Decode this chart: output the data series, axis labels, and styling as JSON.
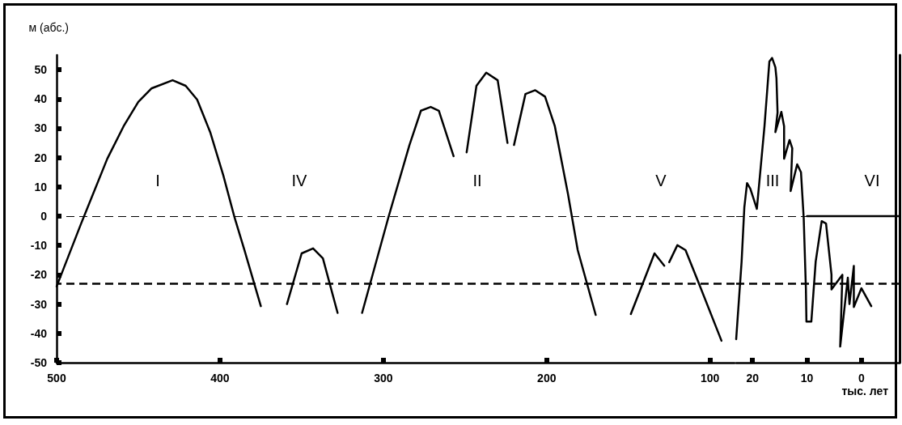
{
  "chart_data": [
    {
      "type": "line",
      "ylabel": "м (абс.)",
      "xlim": [
        500,
        85
      ],
      "xticks": [
        500,
        400,
        300,
        200,
        100
      ],
      "ylim": [
        -50,
        55
      ],
      "yticks": [
        -50,
        -40,
        -30,
        -20,
        -10,
        0,
        10,
        20,
        30,
        40,
        50
      ],
      "marker": "none",
      "line_style": "solid",
      "grid": false,
      "series": [
        {
          "color": "#000000",
          "x": [
            500,
            485,
            469,
            459,
            450,
            442,
            429,
            421,
            414,
            406,
            398,
            391,
            385,
            375
          ],
          "values": [
            -24,
            -2.5,
            19.6,
            30.7,
            39,
            43.6,
            46.4,
            44.5,
            39.8,
            28.7,
            14,
            -0.6,
            -11.6,
            -30.7
          ]
        },
        {
          "color": "#000000",
          "x": [
            359,
            350,
            343,
            337,
            328
          ],
          "values": [
            -30,
            -12.7,
            -11,
            -14.4,
            -33
          ]
        },
        {
          "color": "#000000",
          "x": [
            313,
            297,
            284,
            277,
            271,
            266,
            257
          ],
          "values": [
            -33,
            -0.6,
            24.3,
            36,
            37.3,
            36,
            20.5
          ]
        },
        {
          "color": "#000000",
          "x": [
            249,
            243,
            237,
            230,
            224
          ],
          "values": [
            21.8,
            44.5,
            49,
            46.4,
            25
          ]
        },
        {
          "color": "#000000",
          "x": [
            220,
            213,
            207,
            201,
            195,
            187,
            181,
            170
          ],
          "values": [
            24.3,
            41.7,
            43,
            40.8,
            30.7,
            7.7,
            -11.6,
            -33.7
          ]
        },
        {
          "color": "#000000",
          "x": [
            148.5,
            134,
            128
          ],
          "values": [
            -33.4,
            -12.7,
            -16.9
          ]
        },
        {
          "color": "#000000",
          "x": [
            125,
            120,
            115,
            107,
            93
          ],
          "values": [
            -15.7,
            -9.9,
            -11.6,
            -22.7,
            -42.5
          ]
        }
      ],
      "ref_lines": [
        {
          "axis": "y",
          "value": 0,
          "line_style": "dashed",
          "color": "#000000"
        },
        {
          "axis": "y",
          "value": -23,
          "line_style": "dashed",
          "color": "#000000"
        }
      ],
      "annotations": [
        "I",
        "IV",
        "II",
        "V"
      ]
    },
    {
      "type": "line",
      "xlabel": "тыс. лет",
      "xlim": [
        23,
        -7
      ],
      "xticks": [
        20,
        10,
        0
      ],
      "ylim": [
        -50,
        55
      ],
      "yticks": [
        -50,
        -40,
        -30,
        -20,
        -10,
        0,
        10,
        20,
        30,
        40,
        50
      ],
      "tick_labels": "x",
      "marker": "none",
      "line_style": "solid",
      "grid": false,
      "series": [
        {
          "color": "#000000",
          "x": [
            23,
            22,
            21.5,
            21,
            20.4,
            19.2,
            17.8,
            16.9,
            16.4,
            15.8,
            15.6,
            15.4,
            15.8,
            14.7,
            14.2,
            14.2,
            13.2,
            12.7,
            13,
            11.8,
            11.1,
            10.6,
            10.2,
            10.1,
            9.2,
            8.4,
            7.3,
            6.5,
            5.5,
            5.5,
            3.5,
            3.9,
            2.5,
            2.2,
            1.4,
            1.4,
            0,
            -1.8
          ],
          "values": [
            -42,
            -15.5,
            3,
            11.3,
            9.4,
            2.5,
            30.7,
            52.8,
            54,
            50.8,
            47,
            35.4,
            28.7,
            35.6,
            30.7,
            19.6,
            26,
            23.2,
            8.6,
            17.7,
            15,
            -0.6,
            -24.6,
            -36,
            -36,
            -15.5,
            -1.7,
            -2.5,
            -20,
            -25,
            -20,
            -44.5,
            -21,
            -30,
            -17,
            -31,
            -24.6,
            -30.7
          ]
        },
        {
          "color": "#000000",
          "x": [
            10,
            -7
          ],
          "values": [
            0,
            0
          ]
        }
      ],
      "ref_lines": [
        {
          "axis": "y",
          "value": 0,
          "line_style": "dashed",
          "color": "#000000"
        },
        {
          "axis": "y",
          "value": -23,
          "line_style": "dashed",
          "color": "#000000"
        }
      ],
      "annotations": [
        "III",
        "VI"
      ]
    }
  ]
}
